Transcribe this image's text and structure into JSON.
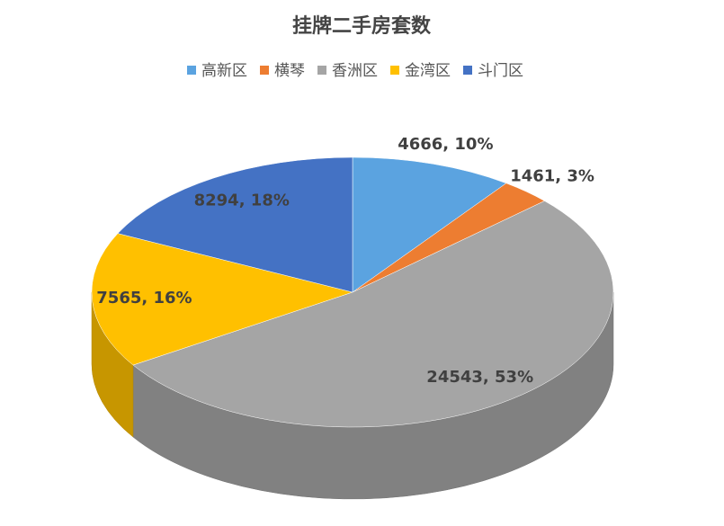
{
  "chart_data": {
    "type": "pie",
    "title": "挂牌二手房套数",
    "categories": [
      "高新区",
      "横琴",
      "香洲区",
      "金湾区",
      "斗门区"
    ],
    "values": [
      4666,
      1461,
      24543,
      7565,
      8294
    ],
    "value_labels": [
      "4666, 10%",
      "1461, 3%",
      "24543, 53%",
      "7565, 16%",
      "8294, 18%"
    ],
    "colors": [
      "#5ba3e0",
      "#ed7d31",
      "#a5a5a5",
      "#ffc000",
      "#4472c4"
    ],
    "legend": "top"
  }
}
